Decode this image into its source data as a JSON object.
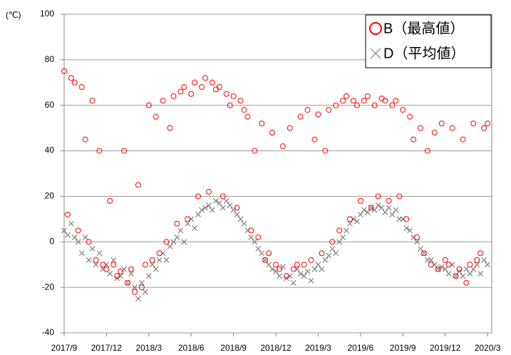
{
  "chart_data": {
    "type": "scatter",
    "y_label": "(℃)",
    "x": [
      0,
      0.25,
      0.5,
      0.75,
      1,
      1.25,
      1.5,
      1.75,
      2,
      2.25,
      2.5,
      2.75,
      3,
      3.25,
      3.5,
      3.75,
      4,
      4.25,
      4.5,
      4.75,
      5,
      5.25,
      5.5,
      5.75,
      6,
      6.25,
      6.5,
      6.75,
      7,
      7.25,
      7.5,
      7.75,
      8,
      8.25,
      8.5,
      8.75,
      9,
      9.25,
      9.5,
      9.75,
      10,
      10.25,
      10.5,
      10.75,
      11,
      11.25,
      11.5,
      11.75,
      12,
      12.25,
      12.5,
      12.75,
      13,
      13.25,
      13.5,
      13.75,
      14,
      14.25,
      14.5,
      14.75,
      15,
      15.25,
      15.5,
      15.75,
      16,
      16.25,
      16.5,
      16.75,
      17,
      17.25,
      17.5,
      17.75,
      18,
      18.25,
      18.5,
      18.75,
      19,
      19.25,
      19.5,
      19.75,
      20,
      20.25,
      20.5,
      20.75,
      21,
      21.25,
      21.5,
      21.75,
      22,
      22.25,
      22.5,
      22.75,
      23,
      23.25,
      23.5,
      23.75,
      24,
      24.25,
      24.5,
      24.75,
      25,
      25.25,
      25.5,
      25.75,
      26,
      26.25,
      26.5,
      26.75,
      27,
      27.25,
      27.5,
      27.75,
      28,
      28.25,
      28.5,
      28.75,
      29,
      29.25,
      29.5,
      29.75,
      30
    ],
    "series": [
      {
        "name": "B（最高値）",
        "color": "#ff0000",
        "marker": "circle",
        "values": [
          75,
          12,
          72,
          70,
          5,
          68,
          45,
          0,
          62,
          -8,
          40,
          -10,
          -12,
          18,
          -10,
          -15,
          -13,
          40,
          -18,
          -12,
          -22,
          25,
          -20,
          -10,
          60,
          -8,
          55,
          -5,
          62,
          0,
          50,
          64,
          8,
          66,
          68,
          10,
          65,
          70,
          20,
          68,
          72,
          22,
          70,
          67,
          68,
          20,
          65,
          60,
          64,
          15,
          62,
          58,
          55,
          5,
          40,
          2,
          52,
          -8,
          -5,
          48,
          -10,
          -12,
          42,
          -15,
          50,
          -12,
          -10,
          55,
          -10,
          58,
          -8,
          45,
          56,
          -5,
          40,
          58,
          0,
          60,
          5,
          62,
          64,
          10,
          62,
          60,
          18,
          62,
          64,
          15,
          60,
          20,
          63,
          62,
          18,
          60,
          62,
          20,
          58,
          10,
          55,
          45,
          2,
          50,
          -5,
          40,
          -10,
          48,
          -12,
          52,
          -8,
          -10,
          50,
          -15,
          -12,
          45,
          -18,
          -10,
          52,
          -8,
          -5,
          50,
          52
        ]
      },
      {
        "name": "D（平均値）",
        "color": "#808080",
        "marker": "x",
        "values": [
          5,
          3,
          8,
          2,
          0,
          -5,
          2,
          -8,
          -3,
          -10,
          -5,
          -12,
          -10,
          -14,
          -8,
          -16,
          -15,
          -12,
          -18,
          -14,
          -20,
          -25,
          -18,
          -22,
          -15,
          -10,
          -12,
          -8,
          -5,
          -8,
          -2,
          0,
          2,
          5,
          0,
          8,
          10,
          6,
          12,
          14,
          15,
          16,
          14,
          18,
          17,
          15,
          18,
          16,
          14,
          12,
          10,
          8,
          5,
          2,
          0,
          -3,
          -5,
          -8,
          -10,
          -12,
          -13,
          -15,
          -11,
          -16,
          -15,
          -18,
          -12,
          -14,
          -15,
          -13,
          -17,
          -12,
          -10,
          -12,
          -8,
          -6,
          -3,
          -5,
          0,
          2,
          5,
          8,
          10,
          9,
          12,
          14,
          13,
          15,
          14,
          16,
          15,
          13,
          15,
          12,
          14,
          10,
          10,
          6,
          5,
          2,
          0,
          -3,
          -5,
          -8,
          -8,
          -10,
          -12,
          -11,
          -12,
          -14,
          -10,
          -15,
          -13,
          -15,
          -12,
          -14,
          -12,
          -10,
          -14,
          -8,
          -10
        ]
      }
    ],
    "xlim": [
      0,
      30.3
    ],
    "xticks": [
      {
        "value": 0,
        "label": "2017/9"
      },
      {
        "value": 3,
        "label": "2017/12"
      },
      {
        "value": 6,
        "label": "2018/3"
      },
      {
        "value": 9,
        "label": "2018/6"
      },
      {
        "value": 12,
        "label": "2018/9"
      },
      {
        "value": 15,
        "label": "2018/12"
      },
      {
        "value": 18,
        "label": "2019/3"
      },
      {
        "value": 21,
        "label": "2019/6"
      },
      {
        "value": 24,
        "label": "2019/9"
      },
      {
        "value": 27,
        "label": "2019/12"
      },
      {
        "value": 30,
        "label": "2020/3"
      }
    ],
    "ylim": [
      -40,
      100
    ],
    "yticks": [
      -40,
      -20,
      0,
      20,
      40,
      60,
      80,
      100
    ],
    "grid": true,
    "legend": "upper right"
  }
}
